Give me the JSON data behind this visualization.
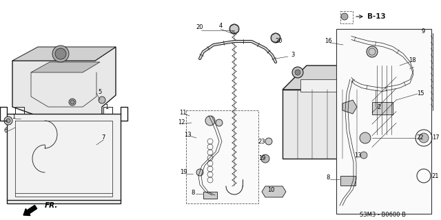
{
  "bg_color": "#ffffff",
  "line_color": "#1a1a1a",
  "diagram_code": "S3M3 - B0600 B",
  "ref_label": "B-13",
  "fr_label": "FR.",
  "gray_fill": "#d8d8d8",
  "light_fill": "#eeeeee"
}
